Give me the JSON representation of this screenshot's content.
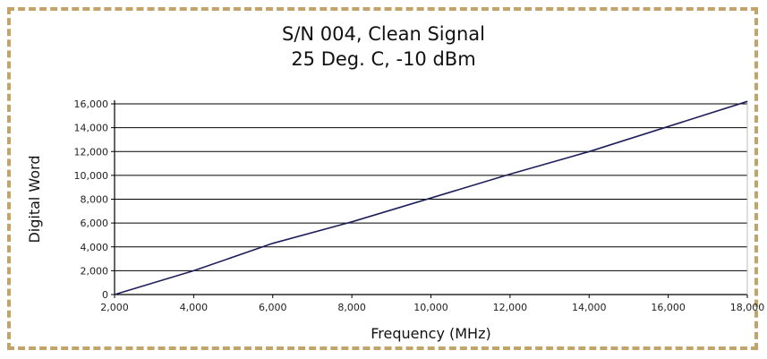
{
  "chart_data": {
    "type": "line",
    "title": "S/N 004, Clean Signal",
    "subtitle": "25 Deg. C, -10 dBm",
    "xlabel": "Frequency (MHz)",
    "ylabel": "Digital Word",
    "xlim": [
      2000,
      18000
    ],
    "ylim": [
      0,
      16000
    ],
    "x_ticks": [
      2000,
      4000,
      6000,
      8000,
      10000,
      12000,
      14000,
      16000,
      18000
    ],
    "x_tick_labels": [
      "2,000",
      "4,000",
      "6,000",
      "8,000",
      "10,000",
      "12,000",
      "14,000",
      "16,000",
      "18,000"
    ],
    "y_ticks": [
      0,
      2000,
      4000,
      6000,
      8000,
      10000,
      12000,
      14000,
      16000
    ],
    "y_tick_labels": [
      "0",
      "2,000",
      "4,000",
      "6,000",
      "8,000",
      "10,000",
      "12,000",
      "14,000",
      "16,000"
    ],
    "grid": "horizontal",
    "legend": "none",
    "series": [
      {
        "color": "#1f1f5c",
        "x": [
          2000,
          4000,
          6000,
          8000,
          10000,
          12000,
          14000,
          16000,
          18000
        ],
        "y": [
          0,
          2000,
          4300,
          6100,
          8100,
          10100,
          12000,
          14100,
          16200
        ]
      }
    ]
  }
}
